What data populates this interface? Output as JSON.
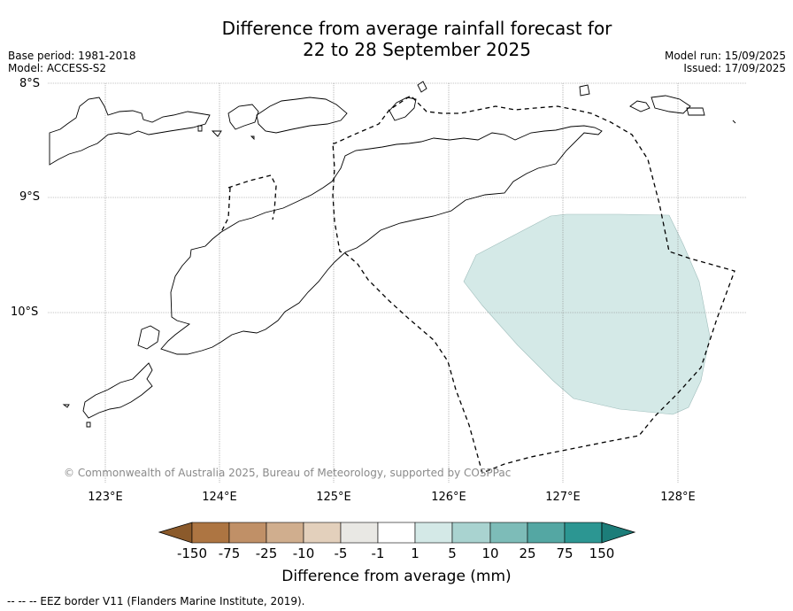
{
  "title_line1": "Difference from average rainfall forecast for",
  "title_line2": "22 to 28 September 2025",
  "base_period": "Base period: 1981-2018",
  "model": "Model: ACCESS-S2",
  "model_run": "Model run: 15/09/2025",
  "issued": "Issued: 17/09/2025",
  "lat_labels": [
    "8°S",
    "9°S",
    "10°S"
  ],
  "lon_labels": [
    "123°E",
    "124°E",
    "125°E",
    "126°E",
    "127°E",
    "128°E"
  ],
  "copyright": "© Commonwealth of Australia 2025, Bureau of Meteorology, supported by COSPPac",
  "legend": {
    "title": "Difference from average (mm)",
    "labels": [
      "-150",
      "-75",
      "-25",
      "-10",
      "-5",
      "-1",
      "1",
      "5",
      "10",
      "25",
      "75",
      "150"
    ],
    "colors": [
      "#8b5a2b",
      "#ad7542",
      "#c09067",
      "#d0ae8e",
      "#e3d0bc",
      "#e9e8e4",
      "#ffffff",
      "#d4e9e7",
      "#a9d3d0",
      "#7dbcb8",
      "#54a7a3",
      "#2c9692",
      "#1c7d79"
    ]
  },
  "footnote": "--  --  -- EEZ border V11 (Flanders Marine Institute, 2019).",
  "map_layers": {
    "anomaly_fill": "1 to 5 mm",
    "fill_color": "#d4e9e7",
    "border": "EEZ border"
  }
}
